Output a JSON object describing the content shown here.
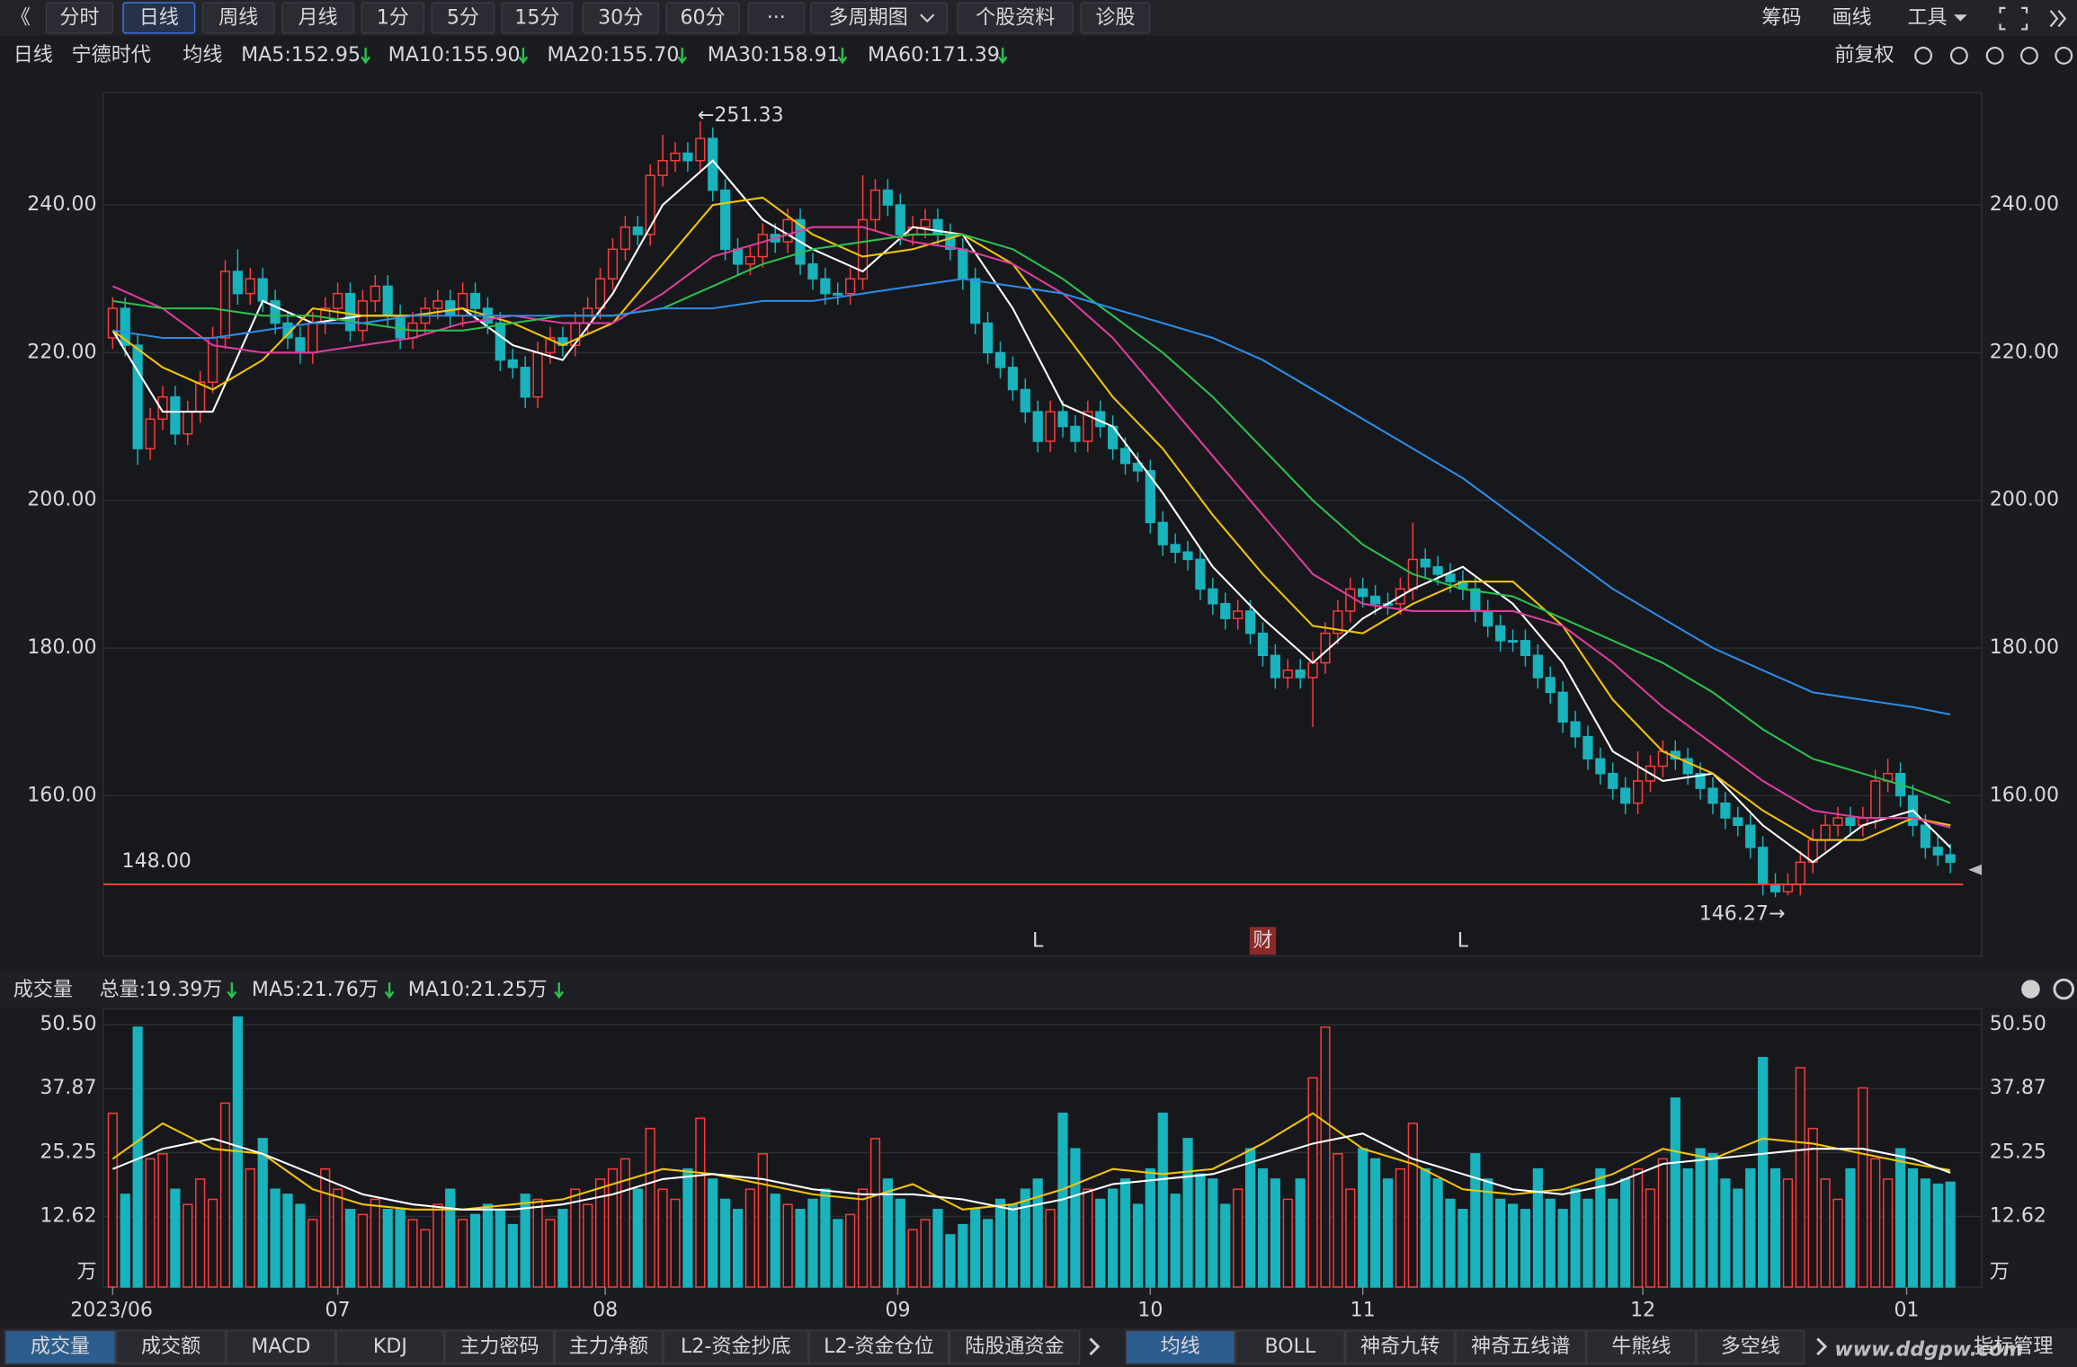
{
  "toolbar": {
    "buttons": [
      "分时",
      "日线",
      "周线",
      "月线",
      "1分",
      "5分",
      "15分",
      "30分",
      "60分",
      "···",
      "多周期图",
      "个股资料",
      "诊股"
    ],
    "right": [
      "筹码",
      "画线",
      "工具"
    ]
  },
  "legend_row": {
    "period": "日线",
    "stock": "宁德时代",
    "ma_label": "均线",
    "adjust": "前复权"
  },
  "chart_data": [
    {
      "type": "candlestick",
      "up_color": "#ff3b3b",
      "down_color": "#19b3bd",
      "xlim": [
        -0.75,
        149.5
      ],
      "ylim": [
        138.3,
        255.2
      ],
      "yticks": [
        {
          "value": 160,
          "label": "160.00"
        },
        {
          "value": 180,
          "label": "180.00"
        },
        {
          "value": 200,
          "label": "200.00"
        },
        {
          "value": 220,
          "label": "220.00"
        },
        {
          "value": 240,
          "label": "240.00"
        }
      ],
      "grid": true,
      "open": [
        222,
        226,
        221,
        207,
        211,
        214,
        209,
        212,
        216,
        222,
        231,
        228,
        230,
        227,
        224,
        222,
        220,
        224,
        226,
        228,
        223,
        227,
        229,
        225,
        222,
        224,
        226,
        227,
        225,
        228,
        226,
        224,
        219,
        218,
        214,
        220,
        222,
        221,
        224,
        226,
        230,
        234,
        237,
        236,
        244,
        246,
        247,
        246,
        249,
        242,
        234,
        232,
        233,
        236,
        235,
        238,
        232,
        230,
        228,
        228,
        230,
        238,
        242,
        240,
        236,
        237,
        238,
        236,
        234,
        230,
        224,
        220,
        218,
        215,
        212,
        208,
        212,
        210,
        208,
        212,
        210,
        207,
        205,
        204,
        197,
        194,
        193,
        192,
        188,
        186,
        184,
        185,
        182,
        179,
        176,
        177,
        176,
        178,
        182,
        185,
        188,
        187,
        186,
        186,
        188,
        192,
        191,
        190,
        189,
        188,
        185,
        183,
        181,
        181,
        179,
        176,
        174,
        170,
        168,
        165,
        163,
        161,
        159,
        162,
        164,
        166,
        165,
        163,
        161,
        159,
        157,
        156,
        153,
        148,
        147,
        148,
        151,
        154,
        156,
        157,
        156,
        157,
        162,
        163,
        160,
        156,
        153,
        152
      ],
      "close": [
        226,
        221,
        207,
        211,
        214,
        209,
        212,
        216,
        222,
        231,
        228,
        230,
        227,
        224,
        222,
        220,
        224,
        226,
        228,
        223,
        227,
        229,
        225,
        222,
        224,
        226,
        227,
        225,
        228,
        226,
        224,
        219,
        218,
        214,
        220,
        222,
        221,
        224,
        226,
        230,
        234,
        237,
        236,
        244,
        246,
        247,
        246,
        249,
        242,
        234,
        232,
        233,
        236,
        235,
        238,
        232,
        230,
        228,
        228,
        230,
        238,
        242,
        240,
        236,
        237,
        238,
        236,
        234,
        230,
        224,
        220,
        218,
        215,
        212,
        208,
        212,
        210,
        208,
        212,
        210,
        207,
        205,
        204,
        197,
        194,
        193,
        192,
        188,
        186,
        184,
        185,
        182,
        179,
        176,
        177,
        176,
        178,
        182,
        185,
        188,
        187,
        186,
        186,
        188,
        192,
        191,
        190,
        189,
        188,
        185,
        183,
        181,
        181,
        179,
        176,
        174,
        170,
        168,
        165,
        163,
        161,
        159,
        162,
        164,
        166,
        165,
        163,
        161,
        159,
        157,
        156,
        153,
        148,
        147,
        148,
        151,
        154,
        156,
        157,
        156,
        157,
        162,
        163,
        160,
        156,
        153,
        152,
        151
      ],
      "high": [
        227.5,
        227.5,
        222.5,
        212.5,
        215.5,
        215.5,
        213.5,
        217.5,
        223.5,
        232.5,
        234,
        231.5,
        231.5,
        228.5,
        225.5,
        223.5,
        225.5,
        227.5,
        229.5,
        229.5,
        228.5,
        230.5,
        230.5,
        226.5,
        225.5,
        227.5,
        228.5,
        228.5,
        229.5,
        229.5,
        227.5,
        225.5,
        220.5,
        219.5,
        221.5,
        223.5,
        223.5,
        225.5,
        227.5,
        231.5,
        235.5,
        238.5,
        238.5,
        245.5,
        249.5,
        248.5,
        248.5,
        251.33,
        250.5,
        243.5,
        235.5,
        234.5,
        237.5,
        237.5,
        239.5,
        239.5,
        233.5,
        231.5,
        229.5,
        231.5,
        244,
        243.5,
        243.5,
        241.5,
        238.5,
        239.5,
        239.5,
        237.5,
        235.5,
        231.5,
        225.5,
        221.5,
        219.5,
        216.5,
        213.5,
        213.5,
        213.5,
        211.5,
        213.5,
        213.5,
        211.5,
        208.5,
        206.5,
        205.5,
        198.5,
        195.5,
        194.5,
        193.5,
        189.5,
        187.5,
        186.5,
        186.5,
        183.5,
        180.5,
        178.5,
        178.5,
        179.5,
        183.5,
        186.5,
        189.5,
        189.5,
        188.5,
        187.5,
        189.5,
        197,
        193.5,
        192.5,
        191.5,
        190.5,
        189.5,
        186.5,
        184.5,
        182.5,
        182.5,
        180.5,
        177.5,
        175.5,
        171.5,
        169.5,
        166.5,
        164.5,
        162.5,
        166,
        165.5,
        167.5,
        167.5,
        166.5,
        164.5,
        162.5,
        160.5,
        158.5,
        157.5,
        154.5,
        149.5,
        149.5,
        152.5,
        155.5,
        157.5,
        158.5,
        158.5,
        158.5,
        163.5,
        165,
        164.5,
        161.5,
        157.5,
        154.5,
        153.5
      ],
      "low": [
        220.5,
        219.5,
        204.8,
        205.5,
        209.5,
        207.5,
        207.5,
        210.5,
        214.5,
        220.5,
        226.5,
        226.5,
        225.5,
        222.5,
        220.5,
        218.5,
        218.5,
        222.5,
        224.5,
        221.5,
        221.5,
        225.5,
        223.5,
        220.5,
        220.5,
        222.5,
        224.5,
        223.5,
        223.5,
        224.5,
        222.5,
        217.5,
        216.5,
        212.5,
        212.5,
        218.5,
        219.5,
        219.5,
        222.5,
        224.5,
        228.5,
        232.5,
        234.5,
        234.5,
        242.5,
        244.5,
        244.5,
        244.5,
        240.5,
        232.5,
        230.5,
        230.5,
        231.5,
        233.5,
        233.5,
        230.5,
        228.5,
        226.5,
        226.5,
        226.5,
        228.5,
        236.5,
        238.5,
        234.5,
        234.5,
        235.5,
        234.5,
        232.5,
        228.5,
        222.5,
        218.5,
        216.5,
        213.5,
        210.5,
        206.5,
        206.5,
        208.5,
        206.5,
        206.5,
        208.5,
        205.5,
        203.5,
        202.5,
        195.5,
        192.5,
        191.5,
        190.5,
        186.5,
        184.5,
        182.5,
        182.5,
        180.5,
        177.5,
        174.5,
        174.5,
        174.5,
        169.3,
        176.5,
        180.5,
        183.5,
        185.5,
        184.5,
        184.5,
        184.5,
        186.5,
        189.5,
        188.5,
        187.5,
        186.5,
        183.5,
        181.5,
        179.5,
        179.5,
        177.5,
        174.5,
        172.5,
        168.5,
        166.5,
        163.5,
        161.5,
        159.5,
        157.5,
        157.5,
        160.5,
        162.5,
        163.5,
        161.5,
        159.5,
        157.5,
        155.5,
        154.5,
        151.5,
        146.5,
        146.27,
        146.5,
        146.5,
        149.5,
        152.5,
        154.5,
        154.5,
        154.5,
        155.5,
        160.5,
        158.5,
        154.5,
        151.5,
        150.5,
        149.5
      ],
      "ma_x": [
        0,
        4,
        8,
        12,
        16,
        20,
        24,
        28,
        32,
        36,
        40,
        44,
        48,
        52,
        56,
        60,
        64,
        68,
        72,
        76,
        80,
        84,
        88,
        92,
        96,
        100,
        104,
        108,
        112,
        116,
        120,
        124,
        128,
        132,
        136,
        140,
        144,
        147
      ],
      "series": [
        {
          "name": "MA5:152.95",
          "color": "#ffffff",
          "values": [
            223,
            212,
            212,
            227,
            224,
            225,
            225,
            226,
            221,
            219,
            228,
            240,
            246,
            238,
            234,
            231,
            237,
            236,
            226,
            213,
            210,
            201,
            191,
            184,
            178,
            184,
            188,
            191,
            186,
            178,
            166,
            162,
            163,
            156,
            151,
            156,
            158,
            153
          ]
        },
        {
          "name": "MA10:155.90",
          "color": "#f5c400",
          "values": [
            223,
            218,
            215,
            219,
            226,
            225,
            225,
            226,
            224,
            221,
            224,
            232,
            240,
            241,
            236,
            233,
            234,
            236,
            232,
            223,
            214,
            207,
            198,
            190,
            183,
            182,
            186,
            189,
            189,
            183,
            173,
            166,
            163,
            158,
            154,
            154,
            157,
            156
          ]
        },
        {
          "name": "MA20:155.70",
          "color": "#e23b9c",
          "values": [
            229,
            226,
            221,
            220,
            220,
            221,
            222,
            224,
            225,
            224,
            224,
            228,
            233,
            235,
            237,
            237,
            235,
            234,
            232,
            228,
            222,
            214,
            206,
            198,
            190,
            186,
            185,
            185,
            185,
            183,
            178,
            172,
            167,
            162,
            158,
            157,
            157,
            155.7
          ]
        },
        {
          "name": "MA30:158.91",
          "color": "#2bc24e",
          "values": [
            227,
            226,
            226,
            225,
            225,
            224,
            223,
            223,
            224,
            225,
            225,
            226,
            229,
            232,
            234,
            235,
            236,
            236,
            234,
            230,
            225,
            220,
            214,
            207,
            200,
            194,
            190,
            188,
            187,
            184,
            181,
            178,
            174,
            169,
            165,
            163,
            161,
            159
          ]
        },
        {
          "name": "MA60:171.39",
          "color": "#2d8ce8",
          "values": [
            223,
            222,
            222,
            223,
            224,
            224,
            225,
            225,
            225,
            225,
            225,
            226,
            226,
            227,
            227,
            228,
            229,
            230,
            229,
            228,
            226,
            224,
            222,
            219,
            215,
            211,
            207,
            203,
            198,
            193,
            188,
            184,
            180,
            177,
            174,
            173,
            172,
            171
          ]
        }
      ],
      "annotations": [
        {
          "label": "←251.33",
          "x": 47,
          "value": 251.33
        },
        {
          "label": "146.27→",
          "x": 134,
          "value": 146.27
        }
      ],
      "price_line": {
        "value": 148,
        "label": "148.00",
        "color": "#e8413a"
      },
      "markers": [
        {
          "label": "L",
          "x": 74
        },
        {
          "label": "财",
          "x": 92
        },
        {
          "label": "L",
          "x": 108
        }
      ]
    },
    {
      "type": "bar",
      "title": "成交量",
      "total_label": "总量:19.39万",
      "xlim": [
        -0.75,
        149.5
      ],
      "ylim": [
        0,
        53.6
      ],
      "yticks": [
        {
          "value": 0,
          "label": "万"
        },
        12.62,
        25.25,
        37.87,
        {
          "value": 50.5,
          "label": "50.50"
        }
      ],
      "grid": true,
      "xticks": [
        {
          "value": 0,
          "label": "2023/06"
        },
        {
          "value": 18,
          "label": "07"
        },
        {
          "value": 39.4,
          "label": "08"
        },
        {
          "value": 62.8,
          "label": "09"
        },
        {
          "value": 83,
          "label": "10"
        },
        {
          "value": 100,
          "label": "11"
        },
        {
          "value": 122.4,
          "label": "12"
        },
        {
          "value": 143.5,
          "label": "01"
        }
      ],
      "values": [
        33,
        17,
        50,
        24,
        25,
        18,
        15,
        20,
        16,
        35,
        52,
        22,
        28,
        18,
        17,
        15,
        12,
        22,
        18,
        14,
        13,
        16,
        14,
        14,
        12,
        10,
        15,
        18,
        12,
        13,
        15,
        14,
        11,
        17,
        16,
        12,
        14,
        18,
        15,
        20,
        22,
        24,
        18,
        30,
        18,
        16,
        22,
        32,
        20,
        16,
        14,
        18,
        25,
        17,
        15,
        14,
        16,
        18,
        12,
        13,
        18,
        28,
        20,
        16,
        10,
        12,
        14,
        9,
        11,
        14,
        12,
        16,
        15,
        18,
        20,
        14,
        33,
        26,
        18,
        16,
        18,
        20,
        15,
        22,
        33,
        17,
        28,
        21,
        20,
        15,
        18,
        26,
        22,
        20,
        16,
        20,
        40,
        50,
        25,
        18,
        26,
        24,
        20,
        22,
        31,
        22,
        20,
        16,
        14,
        25,
        20,
        16,
        15,
        14,
        22,
        16,
        14,
        18,
        16,
        22,
        16,
        20,
        22,
        18,
        24,
        36,
        22,
        26,
        25,
        20,
        18,
        22,
        44,
        22,
        20,
        42,
        30,
        20,
        16,
        22,
        38,
        24,
        20,
        26,
        22,
        20,
        19,
        19.39
      ],
      "ma_x": [
        0,
        4,
        8,
        12,
        16,
        20,
        24,
        28,
        32,
        36,
        40,
        44,
        48,
        52,
        56,
        60,
        64,
        68,
        72,
        76,
        80,
        84,
        88,
        92,
        96,
        100,
        104,
        108,
        112,
        116,
        120,
        124,
        128,
        132,
        136,
        140,
        144,
        147
      ],
      "series": [
        {
          "name": "MA5:21.76万",
          "color": "#f5c400",
          "values": [
            24,
            31,
            26,
            25,
            18,
            15,
            14,
            14,
            15,
            16,
            19,
            22,
            21,
            19,
            17,
            16,
            19,
            14,
            15,
            18,
            22,
            21,
            22,
            27,
            33,
            26,
            23,
            18,
            17,
            18,
            21,
            26,
            24,
            28,
            27,
            25,
            23,
            21.76
          ]
        },
        {
          "name": "MA10:21.25万",
          "color": "#ffffff",
          "values": [
            22,
            26,
            28,
            25,
            21,
            17,
            15,
            14,
            14,
            15,
            17,
            20,
            21,
            20,
            18,
            17,
            17,
            16,
            14,
            16,
            19,
            20,
            21,
            24,
            27,
            29,
            24,
            21,
            18,
            17,
            19,
            23,
            24,
            25,
            26,
            26,
            24,
            21.25
          ]
        }
      ]
    }
  ],
  "bottom_tabs": {
    "left": [
      "成交量",
      "成交额",
      "MACD",
      "KDJ",
      "主力密码",
      "主力净额",
      "L2-资金抄底",
      "L2-资金仓位",
      "陆股通资金"
    ],
    "right": [
      "均线",
      "BOLL",
      "神奇九转",
      "神奇五线谱",
      "牛熊线",
      "多空线"
    ],
    "manage": "指标管理",
    "watermark": "www.ddgpw.com"
  }
}
